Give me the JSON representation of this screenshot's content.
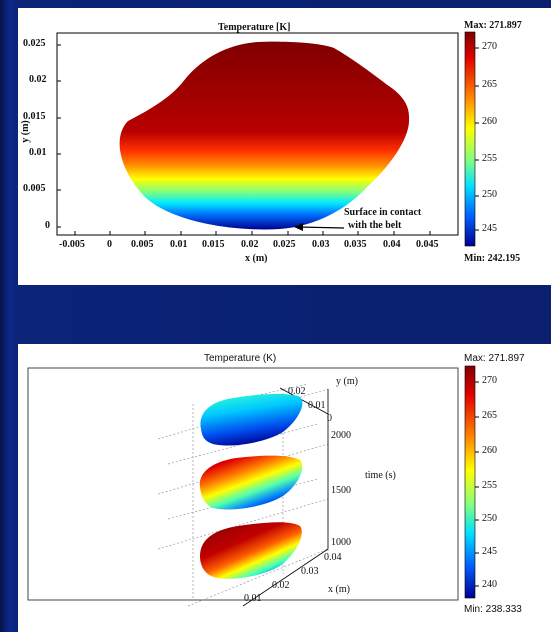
{
  "top_plot": {
    "title": "Temperature [K]",
    "xlabel": "x (m)",
    "ylabel": "y (m)",
    "x_ticks": [
      "-0.005",
      "0",
      "0.005",
      "0.01",
      "0.015",
      "0.02",
      "0.025",
      "0.03",
      "0.035",
      "0.04",
      "0.045"
    ],
    "y_ticks": [
      "0.025",
      "0.02",
      "0.015",
      "0.01",
      "0.005",
      "0"
    ],
    "annotation_line1": "Surface in contact",
    "annotation_line2": "with the belt",
    "colorbar_max": "Max: 271.897",
    "colorbar_min": "Min: 242.195",
    "colorbar_ticks": [
      "270",
      "265",
      "260",
      "255",
      "250",
      "245"
    ]
  },
  "bottom_plot": {
    "title": "Temperature (K)",
    "y_axis_label": "y (m)",
    "y_ticks": [
      "0.02",
      "0.01",
      "0"
    ],
    "time_label": "time (s)",
    "time_ticks": [
      "2000",
      "1500",
      "1000"
    ],
    "x_axis_label": "x (m)",
    "x_ticks": [
      "0.04",
      "0.03",
      "0.02",
      "0.01"
    ],
    "colorbar_max": "Max: 271.897",
    "colorbar_min": "Min: 238.333",
    "colorbar_ticks": [
      "270",
      "265",
      "260",
      "255",
      "250",
      "245",
      "240"
    ]
  },
  "colors": {
    "background": "#0a1f6e",
    "colormap": [
      "#00008f",
      "#0060ff",
      "#00e0ff",
      "#80ff80",
      "#ffff00",
      "#ff8000",
      "#e00000",
      "#800000"
    ]
  }
}
